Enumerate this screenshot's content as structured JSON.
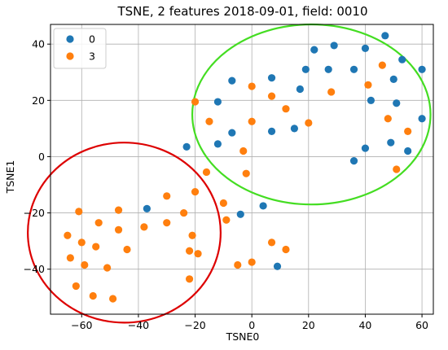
{
  "chart_data": {
    "type": "scatter",
    "title": "TSNE, 2 features 2018-09-01, field: 0010",
    "xlabel": "TSNE0",
    "ylabel": "TSNE1",
    "xlim": [
      -71,
      64
    ],
    "ylim": [
      -56,
      47
    ],
    "xticks": [
      -60,
      -40,
      -20,
      0,
      20,
      40,
      60
    ],
    "yticks": [
      -40,
      -20,
      0,
      20,
      40
    ],
    "grid": true,
    "legend_position": "top-left",
    "series": [
      {
        "name": "0",
        "color": "#1f77b4",
        "points": [
          [
            47,
            43
          ],
          [
            29,
            39.5
          ],
          [
            40,
            38.5
          ],
          [
            22,
            38
          ],
          [
            53,
            34.5
          ],
          [
            19,
            31
          ],
          [
            27,
            31
          ],
          [
            36,
            31
          ],
          [
            60,
            31
          ],
          [
            7,
            28
          ],
          [
            -7,
            27
          ],
          [
            50,
            27.5
          ],
          [
            17,
            24
          ],
          [
            42,
            20
          ],
          [
            51,
            19
          ],
          [
            -12,
            19.5
          ],
          [
            -7,
            8.5
          ],
          [
            7,
            9
          ],
          [
            15,
            10
          ],
          [
            60,
            13.5
          ],
          [
            -12,
            4.5
          ],
          [
            49,
            5
          ],
          [
            -23,
            3.5
          ],
          [
            40,
            3
          ],
          [
            55,
            2
          ],
          [
            36,
            -1.5
          ],
          [
            -37,
            -18.5
          ],
          [
            4,
            -17.5
          ],
          [
            -4,
            -20.5
          ],
          [
            9,
            -39
          ]
        ]
      },
      {
        "name": "3",
        "color": "#ff7f0e",
        "points": [
          [
            46,
            32.5
          ],
          [
            0,
            25
          ],
          [
            41,
            25.5
          ],
          [
            28,
            23
          ],
          [
            7,
            21.5
          ],
          [
            -20,
            19.5
          ],
          [
            12,
            17
          ],
          [
            48,
            13.5
          ],
          [
            -15,
            12.5
          ],
          [
            0,
            12.5
          ],
          [
            20,
            12
          ],
          [
            -3,
            2
          ],
          [
            55,
            9
          ],
          [
            -2,
            -6
          ],
          [
            51,
            -4.5
          ],
          [
            -16,
            -5.5
          ],
          [
            -30,
            -14
          ],
          [
            -20,
            -12.5
          ],
          [
            -47,
            -19
          ],
          [
            -61,
            -19.5
          ],
          [
            -10,
            -16.5
          ],
          [
            -24,
            -20
          ],
          [
            -54,
            -23.5
          ],
          [
            -30,
            -23.5
          ],
          [
            -9,
            -22.5
          ],
          [
            -60,
            -30.5
          ],
          [
            -38,
            -25
          ],
          [
            -47,
            -26
          ],
          [
            -21,
            -28
          ],
          [
            -65,
            -28
          ],
          [
            -55,
            -32
          ],
          [
            -22,
            -33.5
          ],
          [
            7,
            -30.5
          ],
          [
            -44,
            -33
          ],
          [
            -19,
            -34.5
          ],
          [
            12,
            -33
          ],
          [
            -64,
            -36
          ],
          [
            -59,
            -38.5
          ],
          [
            -51,
            -39.5
          ],
          [
            -5,
            -38.5
          ],
          [
            0,
            -37.5
          ],
          [
            -22,
            -43.5
          ],
          [
            -62,
            -46
          ],
          [
            -56,
            -49.5
          ],
          [
            -49,
            -50.5
          ]
        ]
      }
    ],
    "annotations": [
      {
        "shape": "ellipse",
        "color": "#dd0000",
        "center": [
          -45,
          -27
        ],
        "radii": [
          34,
          32
        ]
      },
      {
        "shape": "ellipse",
        "color": "#44dd22",
        "center": [
          21,
          15
        ],
        "radii": [
          42,
          32
        ]
      }
    ]
  }
}
